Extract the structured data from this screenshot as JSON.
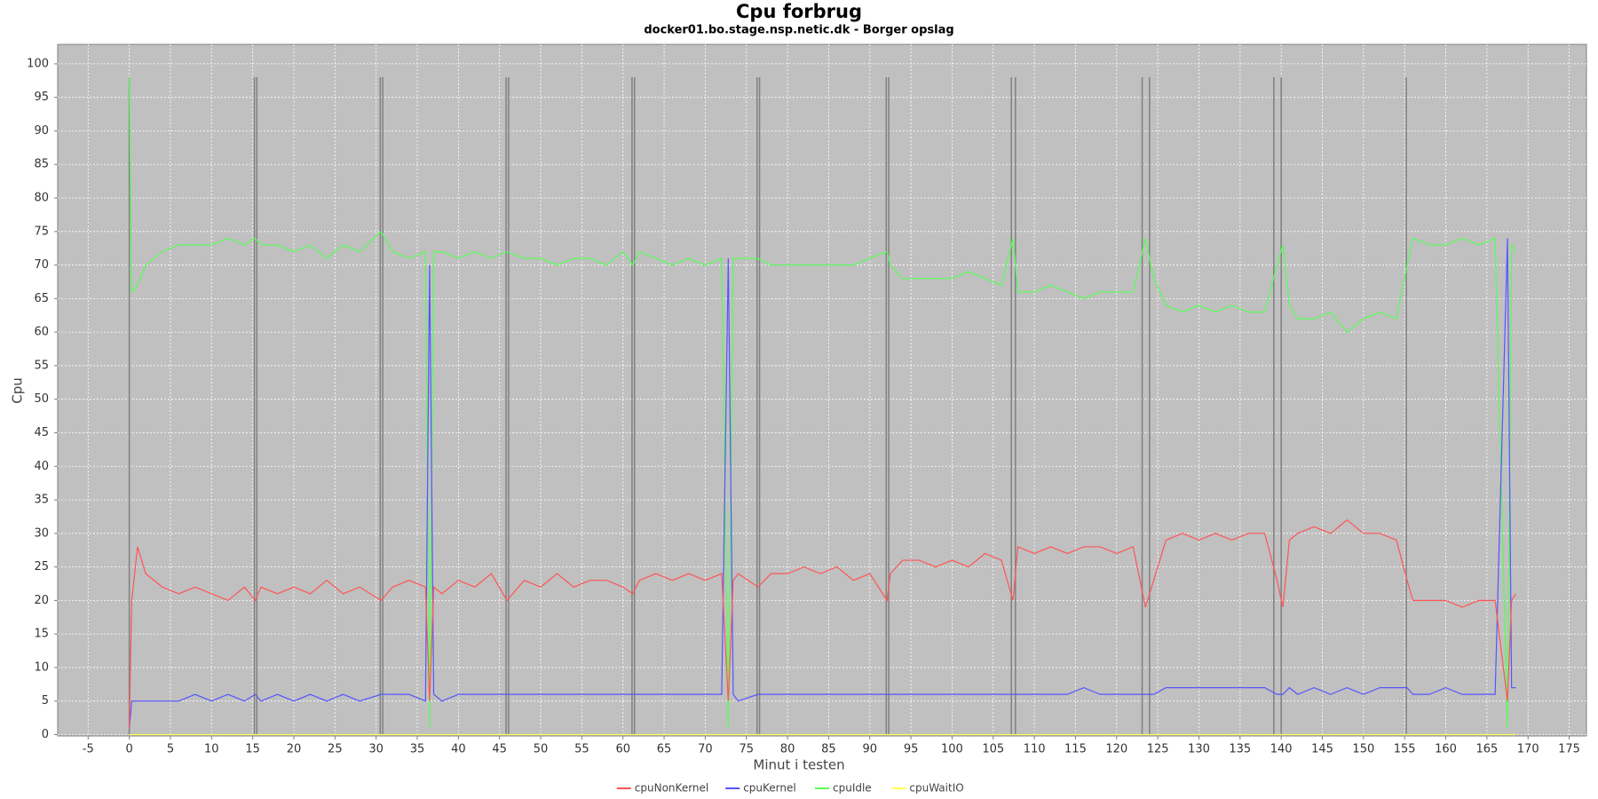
{
  "chart_data": {
    "type": "line",
    "title": "Cpu forbrug",
    "subtitle": "docker01.bo.stage.nsp.netic.dk - Borger opslag",
    "x_label": "Minut i testen",
    "y_label": "Cpu",
    "xlim": [
      -8.7,
      177.1
    ],
    "ylim": [
      -0.2,
      102.9
    ],
    "xticks": [
      -5,
      0,
      5,
      10,
      15,
      20,
      25,
      30,
      35,
      40,
      45,
      50,
      55,
      60,
      65,
      70,
      75,
      80,
      85,
      90,
      95,
      100,
      105,
      110,
      115,
      120,
      125,
      130,
      135,
      140,
      145,
      150,
      155,
      160,
      165,
      170,
      175
    ],
    "yticks": [
      0,
      5,
      10,
      15,
      20,
      25,
      30,
      35,
      40,
      45,
      50,
      55,
      60,
      65,
      70,
      75,
      80,
      85,
      90,
      95,
      100
    ],
    "grid": true,
    "legend": "bottom",
    "marker_lines": {
      "x": [
        0,
        15.2,
        15.5,
        30.5,
        30.8,
        45.8,
        46.1,
        61.1,
        61.4,
        76.3,
        76.6,
        92.0,
        92.3,
        107.2,
        107.7,
        123.1,
        124.0,
        139.1,
        140.0,
        155.2
      ],
      "top": 98,
      "color": "#808080"
    },
    "x": [
      0,
      0.3,
      1,
      2,
      4,
      6,
      8,
      10,
      12,
      14,
      15.3,
      16,
      18,
      20,
      22,
      24,
      26,
      28,
      30.6,
      32,
      34,
      36,
      36.5,
      37,
      38,
      40,
      42,
      44,
      45.9,
      48,
      50,
      52,
      54,
      56,
      58,
      60,
      61.2,
      62,
      64,
      66,
      68,
      70,
      72,
      72.8,
      73.4,
      74,
      76.4,
      78,
      80,
      82,
      84,
      86,
      88,
      90,
      92.1,
      92.5,
      94,
      96,
      98,
      100,
      102,
      104,
      106,
      107.4,
      108,
      110,
      112,
      114,
      116,
      118,
      120,
      122,
      123.5,
      124.5,
      126,
      128,
      130,
      132,
      134,
      136,
      138,
      139.5,
      140.2,
      141,
      142,
      144,
      146,
      148,
      150,
      152,
      154,
      155.3,
      156,
      158,
      160,
      162,
      164,
      166,
      167.5,
      168,
      168.5
    ],
    "series": [
      {
        "name": "cpuNonKernel",
        "color": "#ff5555",
        "values": [
          1,
          20,
          28,
          24,
          22,
          21,
          22,
          21,
          20,
          22,
          20,
          22,
          21,
          22,
          21,
          23,
          21,
          22,
          20,
          22,
          23,
          22,
          5,
          22,
          21,
          23,
          22,
          24,
          20,
          23,
          22,
          24,
          22,
          23,
          23,
          22,
          21,
          23,
          24,
          23,
          24,
          23,
          24,
          5,
          23,
          24,
          22,
          24,
          24,
          25,
          24,
          25,
          23,
          24,
          20,
          24,
          26,
          26,
          25,
          26,
          25,
          27,
          26,
          20,
          28,
          27,
          28,
          27,
          28,
          28,
          27,
          28,
          19,
          23,
          29,
          30,
          29,
          30,
          29,
          30,
          30,
          23,
          19,
          29,
          30,
          31,
          30,
          32,
          30,
          30,
          29,
          23,
          20,
          20,
          20,
          19,
          20,
          20,
          5,
          20,
          21
        ]
      },
      {
        "name": "cpuKernel",
        "color": "#5555ff",
        "values": [
          1,
          5,
          5,
          5,
          5,
          5,
          6,
          5,
          6,
          5,
          6,
          5,
          6,
          5,
          6,
          5,
          6,
          5,
          6,
          6,
          6,
          5,
          70,
          6,
          5,
          6,
          6,
          6,
          6,
          6,
          6,
          6,
          6,
          6,
          6,
          6,
          6,
          6,
          6,
          6,
          6,
          6,
          6,
          71,
          6,
          5,
          6,
          6,
          6,
          6,
          6,
          6,
          6,
          6,
          6,
          6,
          6,
          6,
          6,
          6,
          6,
          6,
          6,
          6,
          6,
          6,
          6,
          6,
          7,
          6,
          6,
          6,
          6,
          6,
          7,
          7,
          7,
          7,
          7,
          7,
          7,
          6,
          6,
          7,
          6,
          7,
          6,
          7,
          6,
          7,
          7,
          7,
          6,
          6,
          7,
          6,
          6,
          6,
          74,
          7,
          7
        ]
      },
      {
        "name": "cpuIdle",
        "color": "#55ff55",
        "values": [
          98,
          66,
          67,
          70,
          72,
          73,
          73,
          73,
          74,
          73,
          74,
          73,
          73,
          72,
          73,
          71,
          73,
          72,
          75,
          72,
          71,
          72,
          1,
          72,
          72,
          71,
          72,
          71,
          72,
          71,
          71,
          70,
          71,
          71,
          70,
          72,
          70,
          72,
          71,
          70,
          71,
          70,
          71,
          1,
          71,
          71,
          71,
          70,
          70,
          70,
          70,
          70,
          70,
          71,
          72,
          70,
          68,
          68,
          68,
          68,
          69,
          68,
          67,
          74,
          66,
          66,
          67,
          66,
          65,
          66,
          66,
          66,
          74,
          68,
          64,
          63,
          64,
          63,
          64,
          63,
          63,
          70,
          73,
          64,
          62,
          62,
          63,
          60,
          62,
          63,
          62,
          70,
          74,
          73,
          73,
          74,
          73,
          74,
          1,
          73,
          72
        ]
      },
      {
        "name": "cpuWaitIO",
        "color": "#ffff55",
        "values": [
          0,
          0,
          0,
          0,
          0,
          0,
          0,
          0,
          0,
          0,
          0,
          0,
          0,
          0,
          0,
          0,
          0,
          0,
          0,
          0,
          0,
          0,
          0,
          0,
          0,
          0,
          0,
          0,
          0,
          0,
          0,
          0,
          0,
          0,
          0,
          0,
          0,
          0,
          0,
          0,
          0,
          0,
          0,
          0,
          0,
          0,
          0,
          0,
          0,
          0,
          0,
          0,
          0,
          0,
          0,
          0,
          0,
          0,
          0,
          0,
          0,
          0,
          0,
          0,
          0,
          0,
          0,
          0,
          0,
          0,
          0,
          0,
          0,
          0,
          0,
          0,
          0,
          0,
          0,
          0,
          0,
          0,
          0,
          0,
          0,
          0,
          0,
          0,
          0,
          0,
          0,
          0,
          0,
          0,
          0,
          0,
          0,
          0,
          0,
          0,
          0
        ]
      }
    ]
  }
}
